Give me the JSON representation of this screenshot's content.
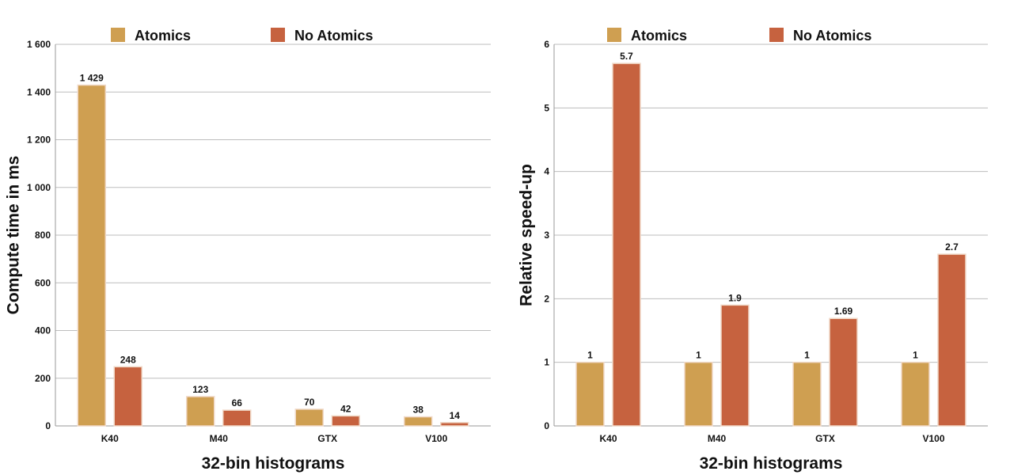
{
  "colors": {
    "atomics": "#cf9f51",
    "no_atomics": "#c6623f",
    "bar_border": "#f0d9c8"
  },
  "chart_data": [
    {
      "type": "bar",
      "title": "",
      "categories": [
        "K40",
        "M40",
        "GTX",
        "V100"
      ],
      "series": [
        {
          "name": "Atomics",
          "values": [
            1429,
            123,
            70,
            38
          ],
          "labels": [
            "1 429",
            "123",
            "70",
            "38"
          ]
        },
        {
          "name": "No Atomics",
          "values": [
            248,
            66,
            42,
            14
          ],
          "labels": [
            "248",
            "66",
            "42",
            "14"
          ]
        }
      ],
      "xlabel": "32-bin histograms",
      "ylabel": "Compute time in ms",
      "ylim": [
        0,
        1600
      ],
      "yticks": [
        0,
        200,
        400,
        600,
        800,
        1000,
        1200,
        1400,
        1600
      ],
      "ytick_labels": [
        "0",
        "200",
        "400",
        "600",
        "800",
        "1 000",
        "1 200",
        "1 400",
        "1 600"
      ],
      "grid": true,
      "legend": "top"
    },
    {
      "type": "bar",
      "title": "",
      "categories": [
        "K40",
        "M40",
        "GTX",
        "V100"
      ],
      "series": [
        {
          "name": "Atomics",
          "values": [
            1,
            1,
            1,
            1
          ],
          "labels": [
            "1",
            "1",
            "1",
            "1"
          ]
        },
        {
          "name": "No Atomics",
          "values": [
            5.7,
            1.9,
            1.69,
            2.7
          ],
          "labels": [
            "5.7",
            "1.9",
            "1.69",
            "2.7"
          ]
        }
      ],
      "xlabel": "32-bin histograms",
      "ylabel": "Relative speed-up",
      "ylim": [
        0,
        6
      ],
      "yticks": [
        0,
        1,
        2,
        3,
        4,
        5,
        6
      ],
      "ytick_labels": [
        "0",
        "1",
        "2",
        "3",
        "4",
        "5",
        "6"
      ],
      "grid": true,
      "legend": "top"
    }
  ]
}
